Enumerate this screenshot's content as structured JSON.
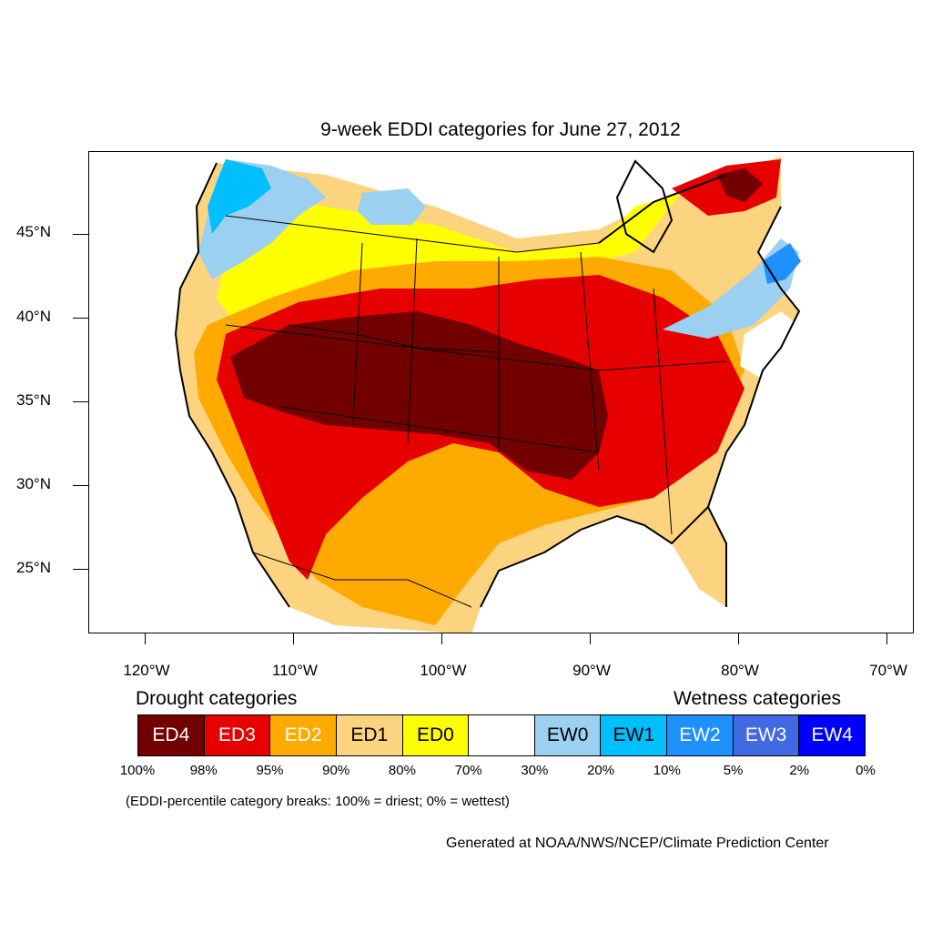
{
  "title": "9-week EDDI categories for June 27, 2012",
  "axes": {
    "y_labels": [
      "45°N",
      "40°N",
      "35°N",
      "30°N",
      "25°N"
    ],
    "x_labels": [
      "120°W",
      "110°W",
      "100°W",
      "90°W",
      "80°W",
      "70°W"
    ]
  },
  "legend": {
    "drought_heading": "Drought categories",
    "wetness_heading": "Wetness categories",
    "categories": [
      {
        "label": "ED4",
        "color": "#730000",
        "text_color": "#ffffff"
      },
      {
        "label": "ED3",
        "color": "#e60000",
        "text_color": "#ffffff"
      },
      {
        "label": "ED2",
        "color": "#ffaa00",
        "text_color": "#ffffff"
      },
      {
        "label": "ED1",
        "color": "#fcd37f",
        "text_color": "#000000"
      },
      {
        "label": "ED0",
        "color": "#ffff00",
        "text_color": "#000000"
      },
      {
        "label": "",
        "color": "#ffffff",
        "text_color": "#000000"
      },
      {
        "label": "EW0",
        "color": "#9bd0f0",
        "text_color": "#000000"
      },
      {
        "label": "EW1",
        "color": "#00bfff",
        "text_color": "#000000"
      },
      {
        "label": "EW2",
        "color": "#1e90ff",
        "text_color": "#ffffff"
      },
      {
        "label": "EW3",
        "color": "#4169e1",
        "text_color": "#ffffff"
      },
      {
        "label": "EW4",
        "color": "#0000ff",
        "text_color": "#ffffff"
      }
    ],
    "breaks": [
      "100%",
      "98%",
      "95%",
      "90%",
      "80%",
      "70%",
      "30%",
      "20%",
      "10%",
      "5%",
      "2%",
      "0%"
    ]
  },
  "note": "(EDDI-percentile category breaks: 100% = driest; 0% = wettest)",
  "credit": "Generated at NOAA/NWS/NCEP/Climate Prediction Center"
}
